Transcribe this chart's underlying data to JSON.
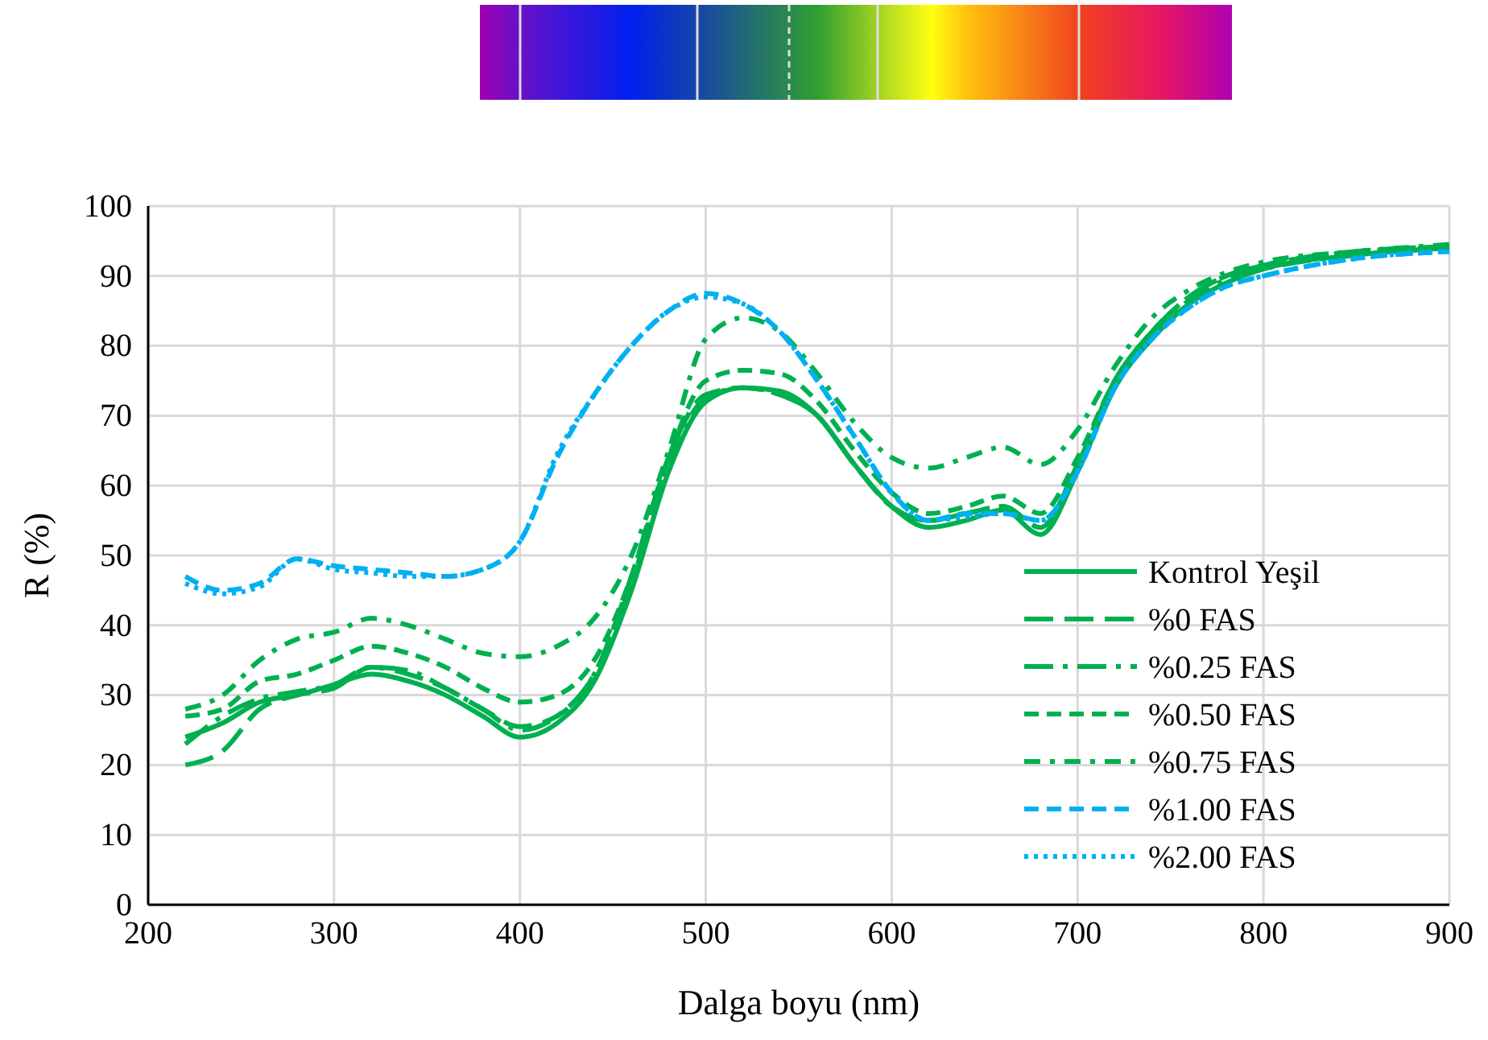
{
  "chart_data": {
    "type": "line",
    "xlabel": "Dalga boyu (nm)",
    "ylabel": "R (%)",
    "x": [
      220,
      240,
      260,
      280,
      300,
      320,
      340,
      360,
      380,
      400,
      420,
      440,
      460,
      480,
      500,
      520,
      540,
      560,
      580,
      600,
      620,
      640,
      660,
      680,
      700,
      720,
      740,
      760,
      780,
      800,
      850,
      900
    ],
    "xlim": [
      200,
      900
    ],
    "xticks": [
      200,
      300,
      400,
      500,
      600,
      700,
      800,
      900
    ],
    "ylim": [
      0,
      100
    ],
    "yticks": [
      0,
      10,
      20,
      30,
      40,
      50,
      60,
      70,
      80,
      90,
      100
    ],
    "grid": true,
    "legend": "bottom right",
    "marker": "none",
    "series": [
      {
        "name": "Kontrol Yeşil",
        "color": "#00b050",
        "line_style": "solid",
        "values": [
          24,
          26,
          29,
          30,
          31.5,
          33,
          32,
          30,
          27,
          24,
          26,
          32,
          45,
          62,
          72,
          74,
          73.5,
          70,
          63,
          57,
          54,
          55,
          56.5,
          53,
          62,
          74,
          81,
          86,
          89,
          91,
          93,
          94
        ]
      },
      {
        "name": "%0 FAS",
        "color": "#00b050",
        "line_style": "longdash",
        "values": [
          20,
          22,
          28,
          30,
          31,
          34,
          33,
          31,
          28,
          25.5,
          27,
          33,
          47,
          64,
          73,
          74,
          73,
          70,
          63,
          57,
          55,
          56,
          57,
          54,
          63,
          75,
          82,
          87,
          90,
          91.5,
          93.5,
          94
        ]
      },
      {
        "name": "%0.25 FAS",
        "color": "#00b050",
        "line_style": "longdashdot",
        "values": [
          23,
          27,
          29.5,
          30.5,
          31.5,
          34,
          33.5,
          31,
          28,
          25,
          27,
          33,
          46,
          63,
          72.5,
          74,
          73,
          70,
          63,
          57,
          55,
          56,
          57,
          54,
          63,
          75,
          82,
          86.5,
          89.5,
          91,
          93,
          94
        ]
      },
      {
        "name": "%0.50 FAS",
        "color": "#00b050",
        "line_style": "dashed",
        "values": [
          27,
          28,
          32,
          33,
          35,
          37,
          36,
          34,
          31,
          29,
          30,
          35,
          47,
          64,
          75,
          76.5,
          76,
          72,
          65,
          59,
          56,
          57,
          58.5,
          56,
          64,
          75,
          82,
          87,
          90,
          91.5,
          93.5,
          94.2
        ]
      },
      {
        "name": "%0.75 FAS",
        "color": "#00b050",
        "line_style": "dashdot",
        "values": [
          28,
          30,
          35,
          38,
          39,
          41,
          40,
          38,
          36,
          35.5,
          37,
          41,
          50,
          65,
          81,
          84,
          82,
          76,
          69,
          64,
          62.5,
          64,
          65.5,
          63,
          68,
          77,
          84,
          88,
          90.5,
          92,
          93.5,
          94.5
        ]
      },
      {
        "name": "%1.00 FAS",
        "color": "#00b0f0",
        "line_style": "dashed",
        "values": [
          47,
          45,
          46,
          49.5,
          48.5,
          48,
          47.5,
          47,
          48,
          52,
          64,
          73,
          80,
          85,
          87.5,
          86,
          82,
          75,
          67,
          59,
          55,
          56,
          56,
          55,
          62,
          74,
          81,
          85.5,
          88.5,
          90,
          92.5,
          93.5
        ]
      },
      {
        "name": "%2.00 FAS",
        "color": "#00b0f0",
        "line_style": "dotted",
        "values": [
          46,
          44.5,
          45.5,
          49.5,
          48,
          47.5,
          47,
          47,
          48,
          52,
          64.5,
          73,
          80,
          85,
          87,
          86,
          82,
          75,
          67,
          59,
          55,
          55.5,
          56,
          55,
          62,
          74,
          81,
          85.5,
          88.5,
          90,
          92.5,
          93.5
        ]
      }
    ]
  }
}
